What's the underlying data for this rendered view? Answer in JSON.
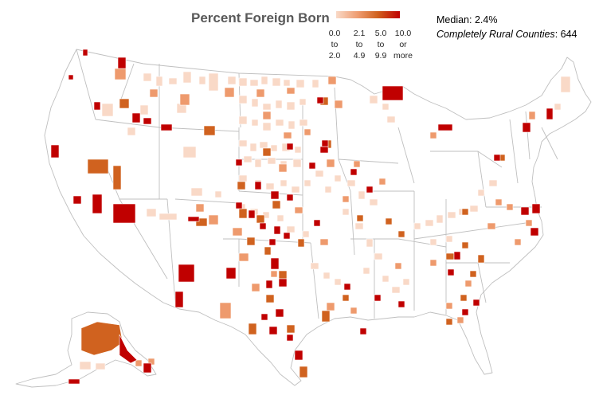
{
  "title": "Percent Foreign Born",
  "legend": {
    "colors": [
      "#f9d9c7",
      "#ee9a6d",
      "#d0621f",
      "#c00000"
    ],
    "bins": [
      {
        "lines": [
          "0.0",
          "to",
          "2.0"
        ]
      },
      {
        "lines": [
          "2.1",
          "to",
          "4.9"
        ]
      },
      {
        "lines": [
          "5.0",
          "to",
          "9.9"
        ]
      },
      {
        "lines": [
          "10.0",
          "or",
          "more"
        ]
      }
    ]
  },
  "stats": {
    "median_label": "Median:",
    "median_value": "2.4%",
    "rural_label": "Completely Rural Counties",
    "rural_value": "644"
  },
  "map": {
    "outline_color": "#bfbfbf",
    "background": "#ffffff"
  }
}
